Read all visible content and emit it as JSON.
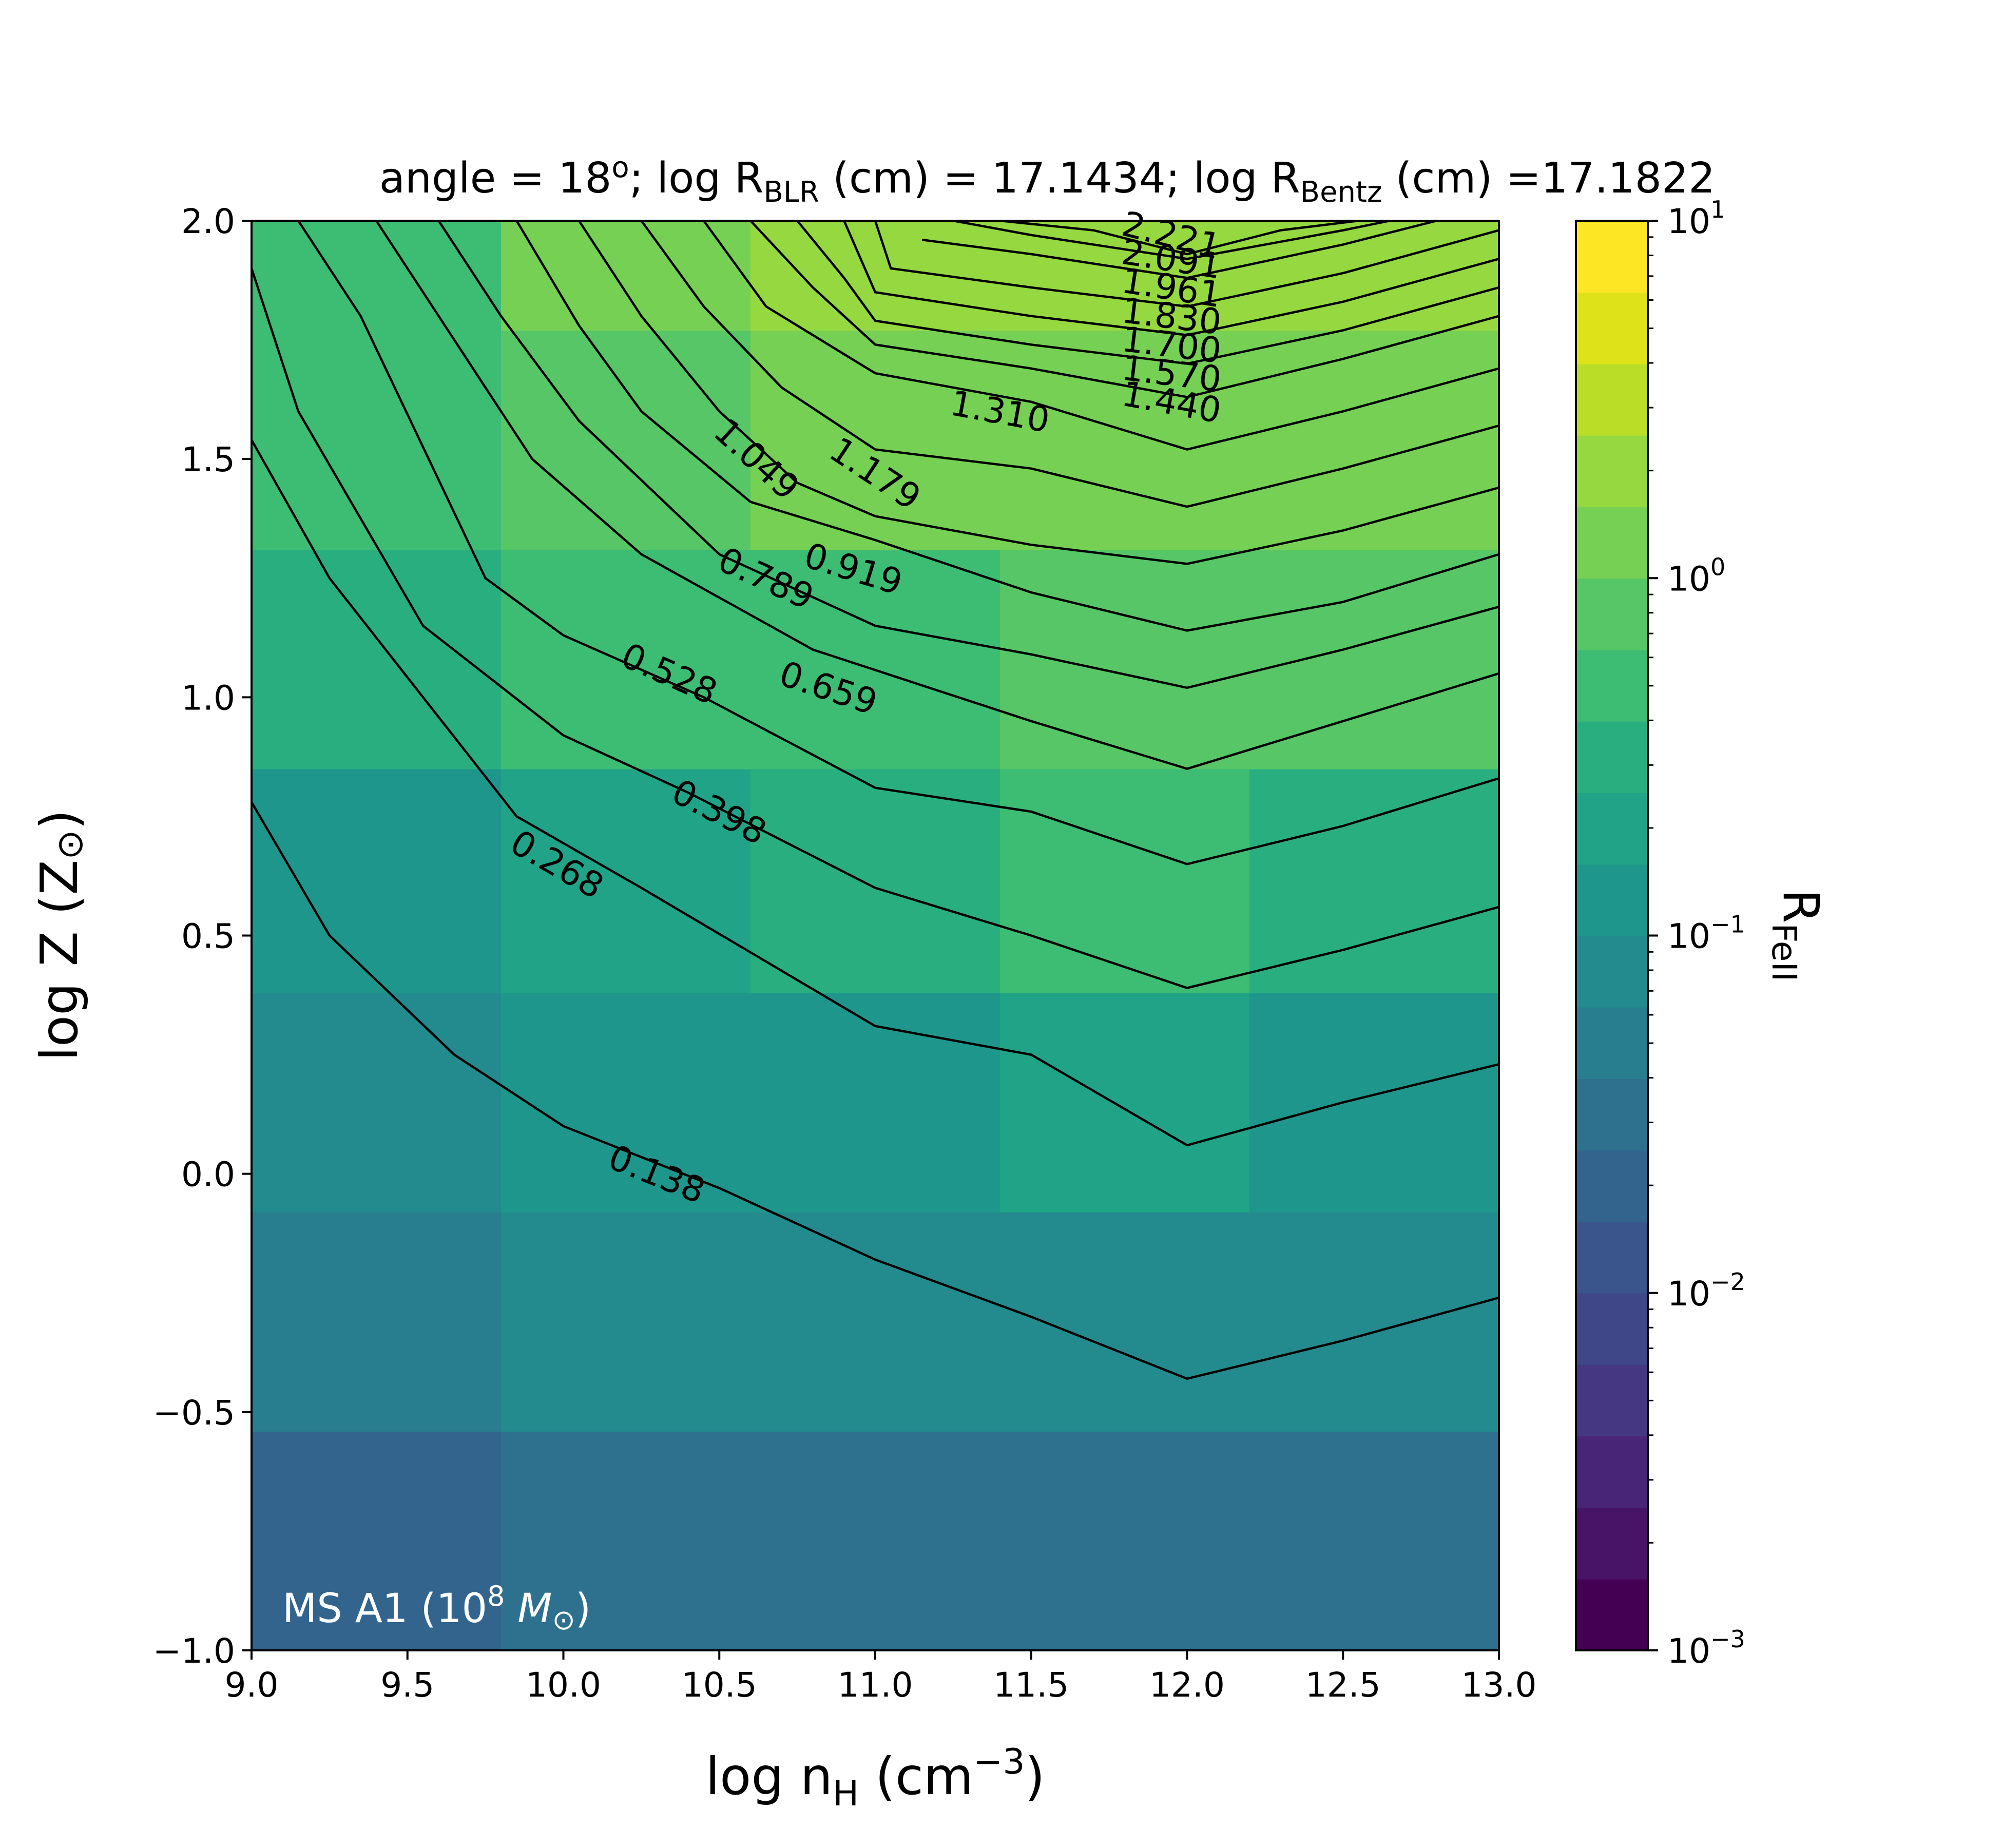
{
  "chart_data": {
    "type": "heatmap",
    "title": {
      "prefix": "angle = 18",
      "angle_unit": "o",
      "mid1": "; log R",
      "sub_blr": "BLR",
      "mid2": " (cm) = 17.1434; log R",
      "sub_bentz": "Bentz",
      "mid3": " (cm) =17.1822"
    },
    "xlabel": {
      "main": "log n",
      "sub": "H",
      "unit_open": " (cm",
      "sup": "−3",
      "unit_close": ")"
    },
    "ylabel": {
      "main": "log Z (Z",
      "sym": "⊙",
      "close": ")"
    },
    "xlim": [
      9.0,
      13.0
    ],
    "ylim": [
      -1.0,
      2.0
    ],
    "x_ticks": [
      "9.0",
      "9.5",
      "10.0",
      "10.5",
      "11.0",
      "11.5",
      "12.0",
      "12.5",
      "13.0"
    ],
    "y_ticks": [
      "−1.0",
      "−0.5",
      "0.0",
      "0.5",
      "1.0",
      "1.5",
      "2.0"
    ],
    "colorbar": {
      "label_main": "R",
      "label_sub": "FeII",
      "scale": "log",
      "range": [
        0.001,
        10
      ],
      "ticks": [
        {
          "value": 0.001,
          "base": "10",
          "exp": "−3"
        },
        {
          "value": 0.01,
          "base": "10",
          "exp": "−2"
        },
        {
          "value": 0.1,
          "base": "10",
          "exp": "−1"
        },
        {
          "value": 1,
          "base": "10",
          "exp": "0"
        },
        {
          "value": 10,
          "base": "10",
          "exp": "1"
        }
      ],
      "levels": 20
    },
    "annotation": {
      "text": "MS A1 (10",
      "sup": "8",
      "mass": " M",
      "sym": "⊙",
      "close": ")"
    },
    "grid": false,
    "grid_x_edges": [
      9.0,
      9.8,
      10.6,
      11.4,
      12.2,
      13.0
    ],
    "grid_y_edges": [
      -1.0,
      -0.54,
      -0.08,
      0.38,
      0.85,
      1.31,
      1.77,
      2.0
    ],
    "cell_log_values": [
      [
        -1.65,
        -1.5,
        -1.45,
        -1.45,
        -1.45
      ],
      [
        -1.35,
        -1.2,
        -1.1,
        -1.15,
        -1.2
      ],
      [
        -1.1,
        -0.95,
        -0.85,
        -0.75,
        -0.9
      ],
      [
        -0.85,
        -0.7,
        -0.55,
        -0.4,
        -0.55
      ],
      [
        -0.55,
        -0.4,
        -0.25,
        -0.1,
        -0.2
      ],
      [
        -0.3,
        -0.15,
        0.02,
        0.18,
        0.05
      ],
      [
        -0.3,
        0.02,
        0.32,
        0.38,
        0.3
      ]
    ],
    "contours": [
      {
        "label": "0.138",
        "x": [
          9.0,
          9.25,
          9.65,
          10.0,
          10.5,
          11.0,
          11.5,
          12.0,
          12.5,
          13.0
        ],
        "y": [
          0.78,
          0.5,
          0.25,
          0.1,
          -0.03,
          -0.18,
          -0.3,
          -0.43,
          -0.35,
          -0.26
        ],
        "label_at": [
          10.3,
          0.0
        ]
      },
      {
        "label": "0.268",
        "x": [
          9.0,
          9.25,
          9.55,
          9.85,
          10.25,
          11.0,
          11.5,
          12.0,
          12.5,
          13.0
        ],
        "y": [
          1.54,
          1.25,
          1.0,
          0.75,
          0.6,
          0.31,
          0.25,
          0.06,
          0.15,
          0.23
        ],
        "label_at": [
          9.98,
          0.65
        ]
      },
      {
        "label": "0.398",
        "x": [
          9.0,
          9.15,
          9.55,
          10.0,
          10.4,
          11.0,
          11.5,
          12.0,
          12.5,
          13.0
        ],
        "y": [
          1.9,
          1.6,
          1.15,
          0.92,
          0.8,
          0.6,
          0.5,
          0.39,
          0.47,
          0.56
        ],
        "label_at": [
          10.5,
          0.76
        ]
      },
      {
        "label": "0.528",
        "x": [
          9.15,
          9.35,
          9.75,
          10.0,
          10.45,
          11.0,
          11.5,
          12.0,
          12.5,
          13.0
        ],
        "y": [
          2.0,
          1.8,
          1.25,
          1.13,
          1.0,
          0.81,
          0.76,
          0.65,
          0.73,
          0.83
        ],
        "label_at": [
          10.34,
          1.05
        ]
      },
      {
        "label": "0.659",
        "x": [
          9.4,
          9.6,
          9.9,
          10.25,
          10.8,
          11.5,
          12.0,
          12.5,
          13.0
        ],
        "y": [
          2.0,
          1.8,
          1.5,
          1.3,
          1.1,
          0.95,
          0.85,
          0.95,
          1.05
        ],
        "label_at": [
          10.85,
          1.02
        ]
      },
      {
        "label": "0.789",
        "x": [
          9.6,
          9.8,
          10.05,
          10.5,
          11.0,
          11.5,
          12.0,
          12.5,
          13.0
        ],
        "y": [
          2.0,
          1.8,
          1.58,
          1.3,
          1.15,
          1.09,
          1.02,
          1.1,
          1.19
        ],
        "label_at": [
          10.65,
          1.25
        ]
      },
      {
        "label": "0.919",
        "x": [
          9.85,
          10.05,
          10.25,
          10.6,
          11.0,
          11.5,
          12.0,
          12.5,
          13.0
        ],
        "y": [
          2.0,
          1.78,
          1.6,
          1.41,
          1.33,
          1.22,
          1.14,
          1.2,
          1.3
        ],
        "label_at": [
          10.93,
          1.27
        ]
      },
      {
        "label": "1.049",
        "x": [
          10.05,
          10.25,
          10.5,
          10.75,
          11.0,
          11.5,
          12.0,
          12.5,
          13.0
        ],
        "y": [
          2.0,
          1.8,
          1.6,
          1.45,
          1.38,
          1.32,
          1.28,
          1.35,
          1.44
        ],
        "label_at": [
          10.62,
          1.5
        ]
      },
      {
        "label": "1.179",
        "x": [
          10.25,
          10.45,
          10.7,
          11.0,
          11.5,
          12.0,
          12.5,
          13.0
        ],
        "y": [
          2.0,
          1.82,
          1.65,
          1.52,
          1.48,
          1.4,
          1.48,
          1.57
        ],
        "label_at": [
          11.0,
          1.47
        ]
      },
      {
        "label": "1.310",
        "x": [
          10.45,
          10.65,
          11.0,
          11.5,
          12.0,
          12.5,
          13.0
        ],
        "y": [
          2.0,
          1.82,
          1.68,
          1.62,
          1.52,
          1.6,
          1.69
        ],
        "label_at": [
          11.4,
          1.6
        ]
      },
      {
        "label": "1.440",
        "x": [
          10.6,
          10.8,
          11.0,
          11.5,
          12.0,
          12.5,
          13.0
        ],
        "y": [
          2.0,
          1.86,
          1.74,
          1.69,
          1.63,
          1.71,
          1.8
        ],
        "label_at": [
          11.95,
          1.62
        ]
      },
      {
        "label": "1.570",
        "x": [
          10.75,
          10.9,
          11.0,
          11.5,
          12.0,
          12.5,
          13.0
        ],
        "y": [
          2.0,
          1.88,
          1.79,
          1.74,
          1.7,
          1.77,
          1.86
        ],
        "label_at": [
          11.95,
          1.68
        ]
      },
      {
        "label": "1.700",
        "x": [
          10.9,
          11.0,
          11.5,
          12.0,
          12.5,
          13.0
        ],
        "y": [
          2.0,
          1.85,
          1.8,
          1.76,
          1.83,
          1.92
        ],
        "label_at": [
          11.95,
          1.74
        ]
      },
      {
        "label": "1.830",
        "x": [
          11.0,
          11.05,
          11.5,
          12.0,
          12.5,
          13.0
        ],
        "y": [
          2.0,
          1.9,
          1.86,
          1.82,
          1.89,
          1.98
        ],
        "label_at": [
          11.95,
          1.8
        ]
      },
      {
        "label": "1.961",
        "x": [
          11.15,
          11.5,
          12.0,
          12.5,
          12.8
        ],
        "y": [
          1.96,
          1.93,
          1.88,
          1.95,
          2.0
        ],
        "label_at": [
          11.95,
          1.86
        ]
      },
      {
        "label": "2.091",
        "x": [
          11.25,
          11.5,
          12.0,
          12.5,
          12.65
        ],
        "y": [
          2.0,
          1.97,
          1.92,
          1.98,
          2.0
        ],
        "label_at": [
          11.95,
          1.92
        ]
      },
      {
        "label": "2.221",
        "x": [
          11.4,
          11.7,
          12.0,
          12.3,
          12.55
        ],
        "y": [
          2.0,
          1.98,
          1.93,
          1.98,
          2.0
        ],
        "label_at": [
          11.95,
          1.97
        ]
      }
    ],
    "palette": [
      "#440154",
      "#481467",
      "#482576",
      "#453781",
      "#3f4788",
      "#39558c",
      "#32648e",
      "#2d718e",
      "#287d8e",
      "#238a8d",
      "#1f968b",
      "#20a386",
      "#29af7f",
      "#3dbc74",
      "#56c667",
      "#75d054",
      "#95d840",
      "#bade28",
      "#dde318",
      "#fde725"
    ]
  }
}
